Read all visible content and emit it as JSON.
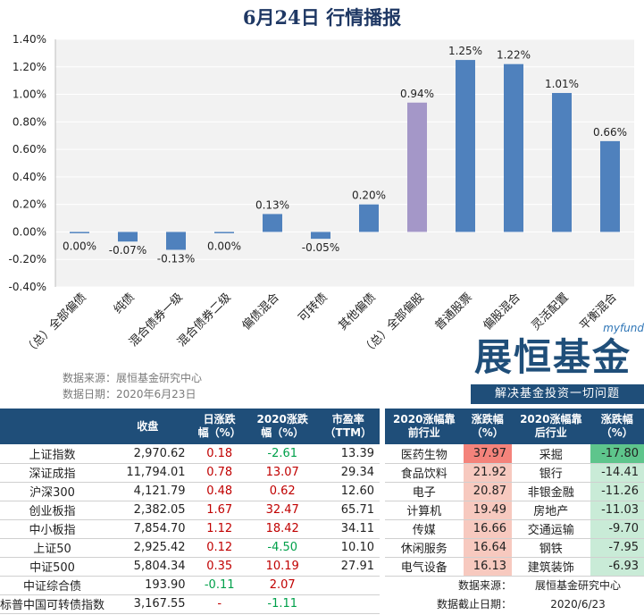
{
  "title": "6月24日  行情播报",
  "chart_data": {
    "type": "bar",
    "categories": [
      "（总）全部偏债",
      "纯债",
      "混合债券一级",
      "混合债券二级",
      "偏债混合",
      "可转债",
      "其他偏债",
      "（总）全部偏股",
      "普通股票",
      "偏股混合",
      "灵活配置",
      "平衡混合"
    ],
    "values": [
      0.0,
      -0.07,
      -0.13,
      0.0,
      0.13,
      -0.05,
      0.2,
      0.94,
      1.25,
      1.22,
      1.01,
      0.66
    ],
    "data_labels": [
      "0.00%",
      "-0.07%",
      "-0.13%",
      "0.00%",
      "0.13%",
      "-0.05%",
      "0.20%",
      "0.94%",
      "1.25%",
      "1.22%",
      "1.01%",
      "0.66%"
    ],
    "highlight_index": 7,
    "ylim": [
      -0.4,
      1.4
    ],
    "yticks": [
      -0.4,
      -0.2,
      0.0,
      0.2,
      0.4,
      0.6,
      0.8,
      1.0,
      1.2,
      1.4
    ],
    "ytick_labels": [
      "-0.40%",
      "-0.20%",
      "0.00%",
      "0.20%",
      "0.40%",
      "0.60%",
      "0.80%",
      "1.00%",
      "1.20%",
      "1.40%"
    ],
    "colors": {
      "bar": "#4f81bd",
      "highlight": "#a497c8",
      "plot_bg": "#f2f2f2",
      "grid": "#ffffff"
    },
    "grid": true,
    "legend": "none"
  },
  "source": {
    "line1": "数据来源：展恒基金研究中心",
    "line2": "数据日期：2020年6月23日"
  },
  "brand": {
    "myfund": "myfund",
    "name": "展恒基金",
    "tagline": "解决基金投资一切问题"
  },
  "index_table": {
    "headers": [
      "",
      "收盘",
      "日涨跌\n幅（%）",
      "2020涨跌\n幅（%）",
      "市盈率\n（TTM）"
    ],
    "rows": [
      {
        "name": "上证指数",
        "close": "2,970.62",
        "day": "0.18",
        "ytd": "-2.61",
        "pe": "13.39",
        "day_color": "red",
        "ytd_color": "green"
      },
      {
        "name": "深证成指",
        "close": "11,794.01",
        "day": "0.78",
        "ytd": "13.07",
        "pe": "29.34",
        "day_color": "red",
        "ytd_color": "red"
      },
      {
        "name": "沪深300",
        "close": "4,121.79",
        "day": "0.48",
        "ytd": "0.62",
        "pe": "12.60",
        "day_color": "red",
        "ytd_color": "red"
      },
      {
        "name": "创业板指",
        "close": "2,382.05",
        "day": "1.67",
        "ytd": "32.47",
        "pe": "65.71",
        "day_color": "red",
        "ytd_color": "red"
      },
      {
        "name": "中小板指",
        "close": "7,854.70",
        "day": "1.12",
        "ytd": "18.42",
        "pe": "34.11",
        "day_color": "red",
        "ytd_color": "red"
      },
      {
        "name": "上证50",
        "close": "2,925.42",
        "day": "0.12",
        "ytd": "-4.50",
        "pe": "10.10",
        "day_color": "red",
        "ytd_color": "green"
      },
      {
        "name": "中证500",
        "close": "5,804.34",
        "day": "0.35",
        "ytd": "10.19",
        "pe": "27.91",
        "day_color": "red",
        "ytd_color": "red"
      },
      {
        "name": "中证综合债",
        "close": "193.90",
        "day": "-0.11",
        "ytd": "2.07",
        "pe": "",
        "day_color": "green",
        "ytd_color": "red"
      },
      {
        "name": "标普中国可转债指数",
        "close": "3,167.55",
        "day": "-",
        "ytd": "-1.11",
        "pe": "",
        "day_color": "red",
        "ytd_color": "green"
      }
    ]
  },
  "industry_table": {
    "headers": [
      "2020涨幅靠\n前行业",
      "涨跌幅\n（%）",
      "2020涨幅靠\n后行业",
      "涨跌幅\n（%）"
    ],
    "rows": [
      {
        "top": "医药生物",
        "top_val": "37.97",
        "bottom": "采掘",
        "bottom_val": "-17.80"
      },
      {
        "top": "食品饮料",
        "top_val": "21.92",
        "bottom": "银行",
        "bottom_val": "-14.41"
      },
      {
        "top": "电子",
        "top_val": "20.87",
        "bottom": "非银金融",
        "bottom_val": "-11.26"
      },
      {
        "top": "计算机",
        "top_val": "19.49",
        "bottom": "房地产",
        "bottom_val": "-11.03"
      },
      {
        "top": "传媒",
        "top_val": "16.66",
        "bottom": "交通运输",
        "bottom_val": "-9.70"
      },
      {
        "top": "休闲服务",
        "top_val": "16.64",
        "bottom": "钢铁",
        "bottom_val": "-7.95"
      },
      {
        "top": "电气设备",
        "top_val": "16.13",
        "bottom": "建筑装饰",
        "bottom_val": "-6.93"
      }
    ],
    "footer": {
      "source_label": "数据来源：",
      "source_value": "展恒基金研究中心",
      "date_label": "数据截止日期：",
      "date_value": "2020/6/23"
    }
  }
}
